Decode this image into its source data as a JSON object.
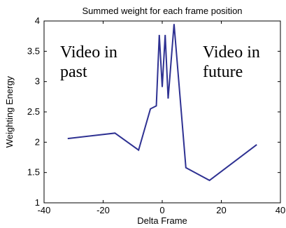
{
  "chart_data": {
    "type": "line",
    "title": "Summed weight for each frame position",
    "xlabel": "Delta Frame",
    "ylabel": "Weighting Energy",
    "xlim": [
      -40,
      40
    ],
    "ylim": [
      1,
      4
    ],
    "xticks": [
      -40,
      -20,
      0,
      20,
      40
    ],
    "yticks": [
      1,
      1.5,
      2,
      2.5,
      3,
      3.5,
      4
    ],
    "xtick_labels": [
      "-40",
      "-20",
      "0",
      "20",
      "40"
    ],
    "ytick_labels": [
      "1",
      "1.5",
      "2",
      "2.5",
      "3",
      "3.5",
      "4"
    ],
    "grid": false,
    "series": [
      {
        "color": "#2e3192",
        "x": [
          -32,
          -16,
          -8,
          -4,
          -2,
          -1,
          0,
          1,
          2,
          4,
          8,
          16,
          32
        ],
        "y": [
          2.06,
          2.15,
          1.87,
          2.55,
          2.6,
          3.77,
          2.91,
          3.77,
          2.72,
          3.95,
          1.58,
          1.37,
          1.96
        ]
      }
    ],
    "annotations": [
      {
        "lines": [
          "Video in",
          "past"
        ]
      },
      {
        "lines": [
          "Video in",
          "future"
        ]
      }
    ]
  }
}
